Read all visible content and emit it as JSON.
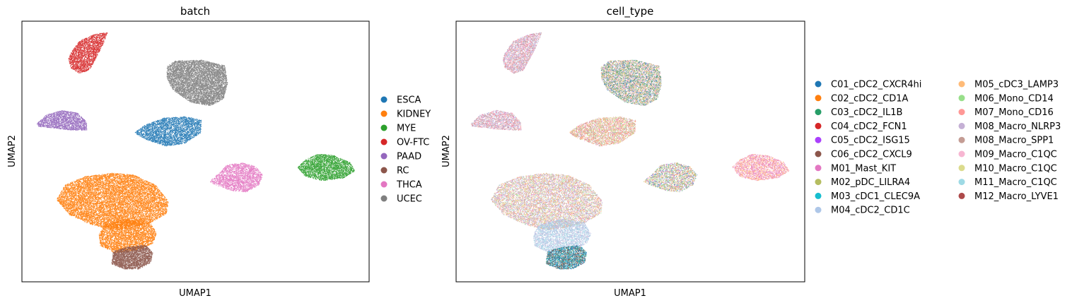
{
  "chart_data": [
    {
      "type": "scatter",
      "title": "batch",
      "xlabel": "UMAP1",
      "ylabel": "UMAP2",
      "grid": false,
      "ticks": false,
      "legend_placement": "right",
      "legend": [
        {
          "label": "ESCA",
          "color": "#1f77b4"
        },
        {
          "label": "KIDNEY",
          "color": "#ff7f0e"
        },
        {
          "label": "MYE",
          "color": "#2ca02c"
        },
        {
          "label": "OV-FTC",
          "color": "#d62728"
        },
        {
          "label": "PAAD",
          "color": "#9467bd"
        },
        {
          "label": "RC",
          "color": "#8c564b"
        },
        {
          "label": "THCA",
          "color": "#e377c2"
        },
        {
          "label": "UCEC",
          "color": "#7f7f7f"
        }
      ]
    },
    {
      "type": "scatter",
      "title": "cell_type",
      "xlabel": "UMAP1",
      "ylabel": "UMAP2",
      "grid": false,
      "ticks": false,
      "legend_placement": "right",
      "legend": [
        {
          "label": "C01_cDC2_CXCR4hi",
          "color": "#1f77b4"
        },
        {
          "label": "C02_cDC2_CD1A",
          "color": "#ff7f0e"
        },
        {
          "label": "C03_cDC2_IL1B",
          "color": "#279e68"
        },
        {
          "label": "C04_cDC2_FCN1",
          "color": "#d62728"
        },
        {
          "label": "C05_cDC2_ISG15",
          "color": "#aa40fc"
        },
        {
          "label": "C06_cDC2_CXCL9",
          "color": "#8c564b"
        },
        {
          "label": "M01_Mast_KIT",
          "color": "#e377c2"
        },
        {
          "label": "M02_pDC_LILRA4",
          "color": "#b5bd61"
        },
        {
          "label": "M03_cDC1_CLEC9A",
          "color": "#17becf"
        },
        {
          "label": "M04_cDC2_CD1C",
          "color": "#aec7e8"
        },
        {
          "label": "M05_cDC3_LAMP3",
          "color": "#ffbb78"
        },
        {
          "label": "M06_Mono_CD14",
          "color": "#98df8a"
        },
        {
          "label": "M07_Mono_CD16",
          "color": "#ff9896"
        },
        {
          "label": "M08_Macro_NLRP3",
          "color": "#c5b0d5"
        },
        {
          "label": "M08_Macro_SPP1",
          "color": "#c49c94"
        },
        {
          "label": "M09_Macro_C1QC",
          "color": "#f7b6d2"
        },
        {
          "label": "M10_Macro_C1QC",
          "color": "#dbdb8d"
        },
        {
          "label": "M11_Macro_C1QC",
          "color": "#9edae5"
        },
        {
          "label": "M12_Macro_LYVE1",
          "color": "#ad494a"
        }
      ]
    }
  ]
}
